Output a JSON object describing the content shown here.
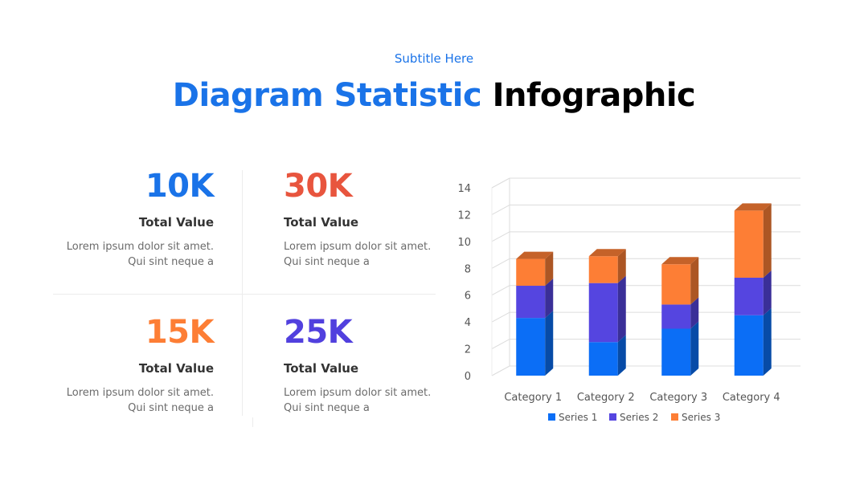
{
  "header": {
    "subtitle": "Subtitle Here",
    "title_part1": "Diagram Statistic",
    "title_part2": "Infographic"
  },
  "stats": [
    {
      "value": "10K",
      "label": "Total Value",
      "desc_line1": "Lorem ipsum dolor sit amet.",
      "desc_line2": "Qui sint neque a",
      "color": "#1a73e8"
    },
    {
      "value": "30K",
      "label": "Total Value",
      "desc_line1": "Lorem ipsum dolor sit amet.",
      "desc_line2": "Qui sint neque a",
      "color": "#e8553e"
    },
    {
      "value": "15K",
      "label": "Total Value",
      "desc_line1": "Lorem ipsum dolor sit amet.",
      "desc_line2": "Qui sint neque a",
      "color": "#fd7e35"
    },
    {
      "value": "25K",
      "label": "Total Value",
      "desc_line1": "Lorem ipsum dolor sit amet.",
      "desc_line2": "Qui sint neque a",
      "color": "#5140de"
    }
  ],
  "chart_data": {
    "type": "bar",
    "stacked": true,
    "style": "3d",
    "categories": [
      "Category 1",
      "Category 2",
      "Category 3",
      "Category 4"
    ],
    "series": [
      {
        "name": "Series 1",
        "values": [
          4.3,
          2.5,
          3.5,
          4.5
        ],
        "color": "#0b6ef6"
      },
      {
        "name": "Series 2",
        "values": [
          2.4,
          4.4,
          1.8,
          2.8
        ],
        "color": "#5545e0"
      },
      {
        "name": "Series 3",
        "values": [
          2.0,
          2.0,
          3.0,
          5.0
        ],
        "color": "#fd7e35"
      }
    ],
    "yticks": [
      "0",
      "2",
      "4",
      "6",
      "8",
      "10",
      "12",
      "14"
    ],
    "ylim": [
      0,
      14
    ],
    "grid": true,
    "legend": "bottom"
  }
}
